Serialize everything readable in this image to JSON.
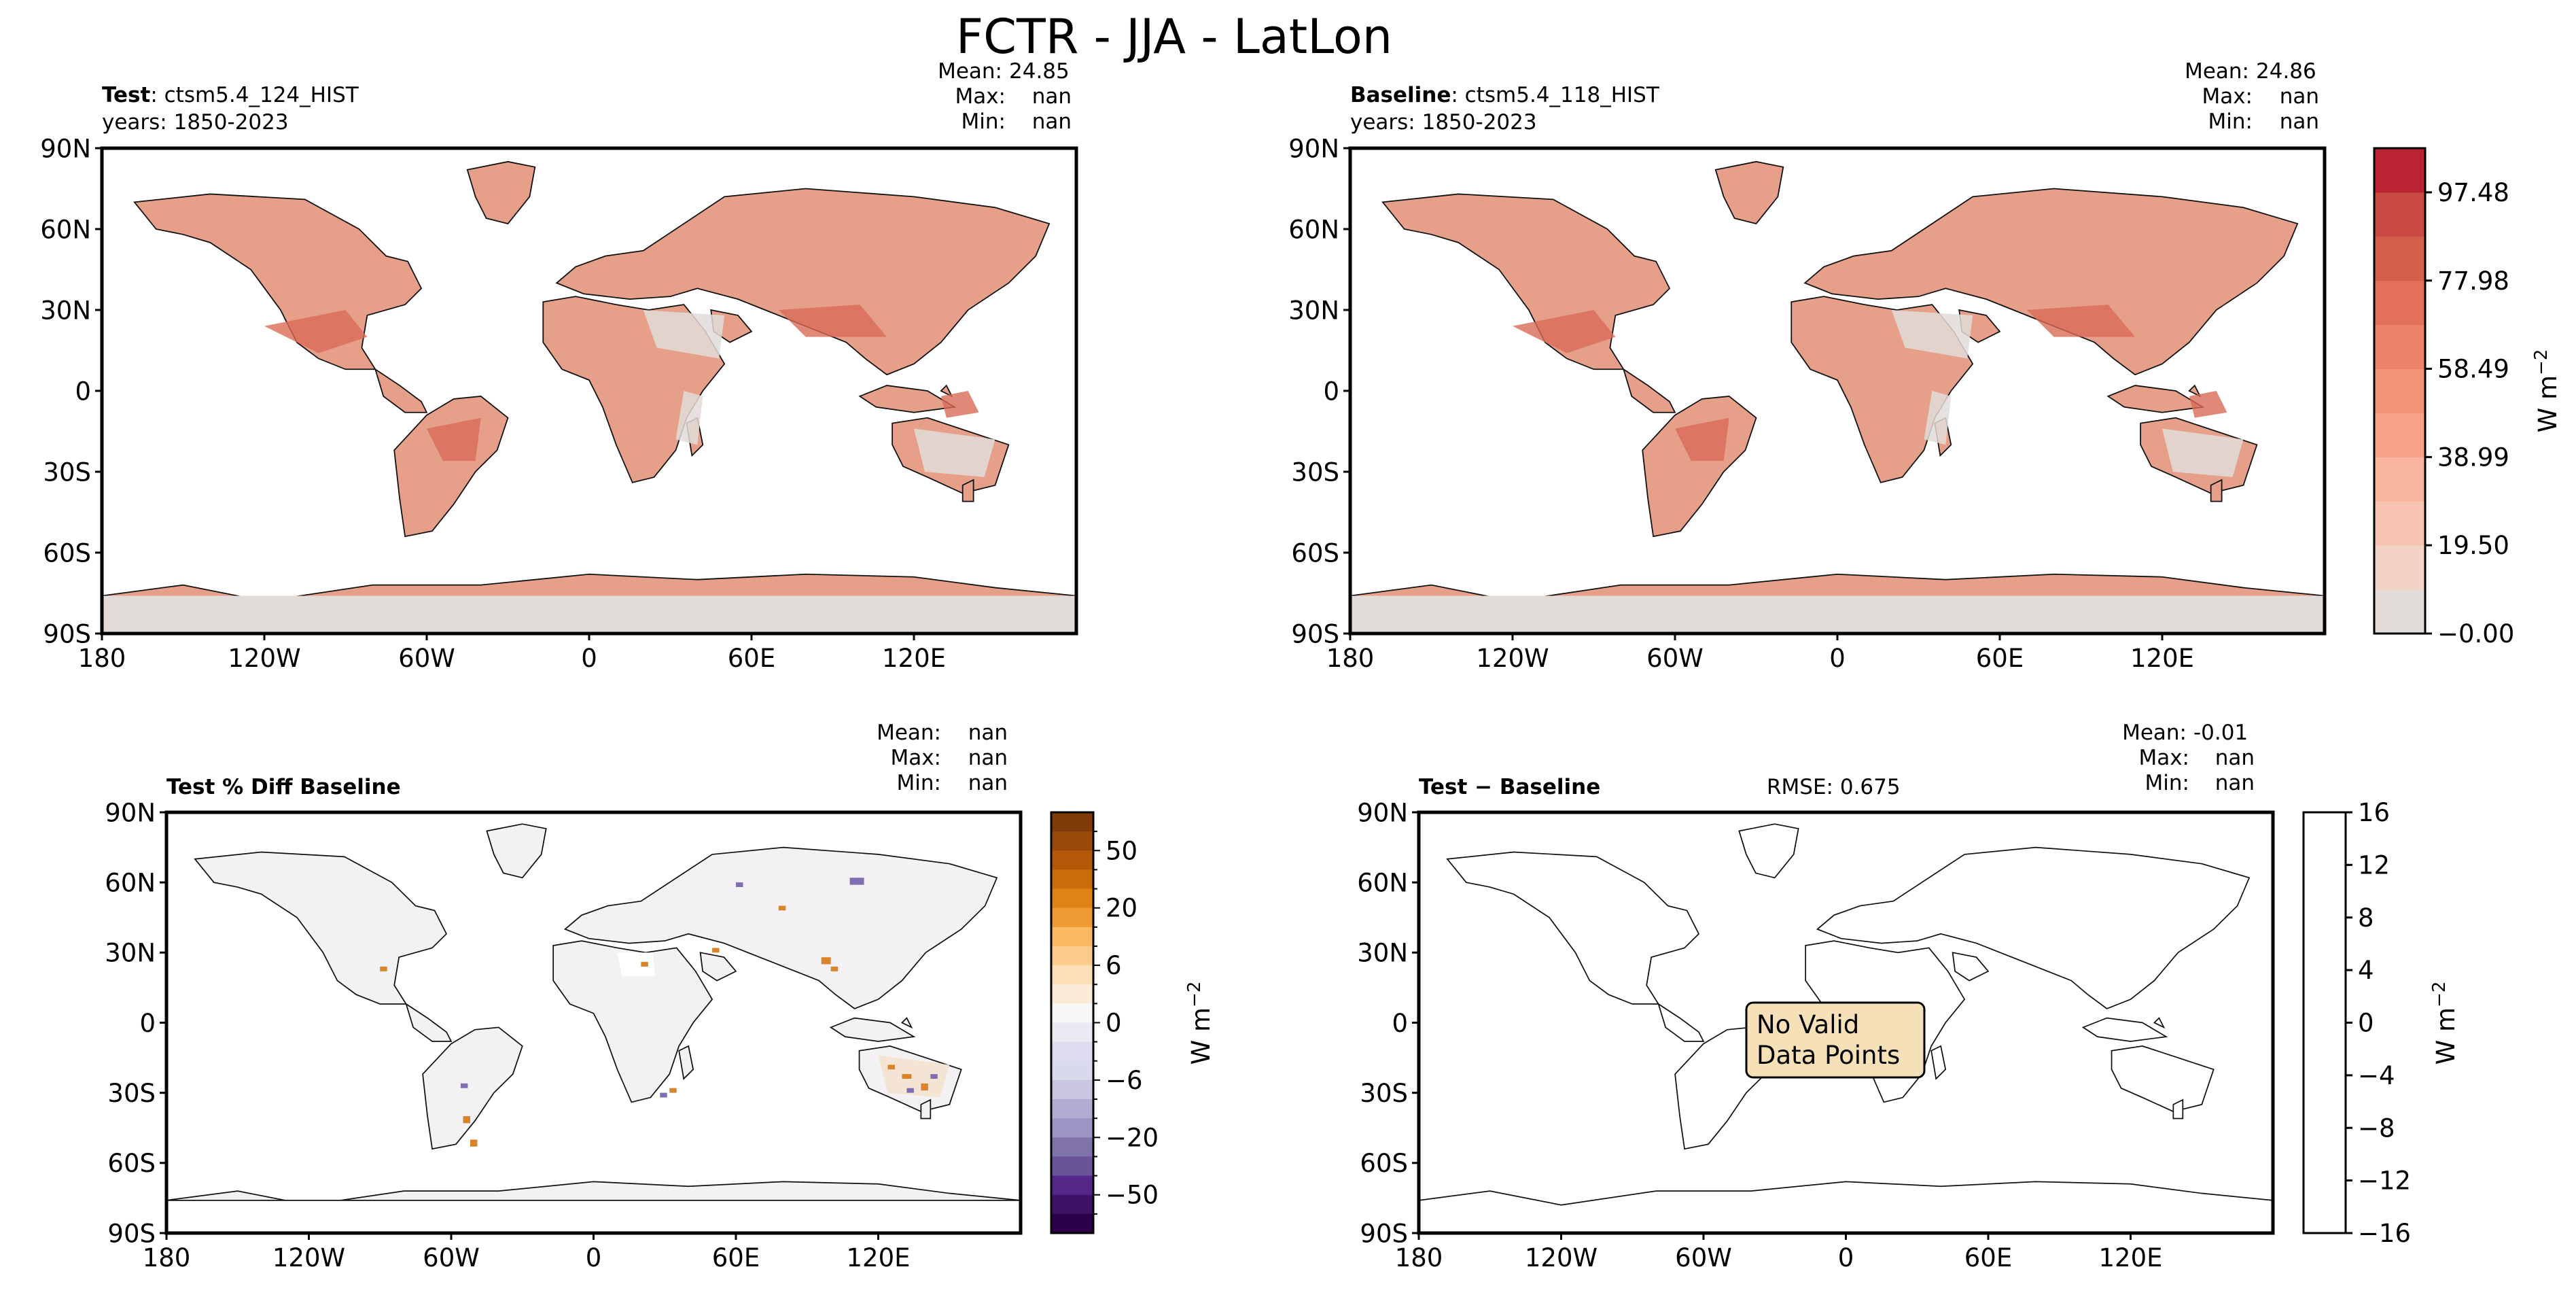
{
  "page": {
    "suptitle": "FCTR - JJA - LatLon"
  },
  "chart_data": [
    {
      "type": "heatmap",
      "panel": "test",
      "title_bold": "Test",
      "title_rest": ": ctsm5.4_124_HIST",
      "subtitle": "years: 1850-2023",
      "stats": {
        "mean_label": "Mean:",
        "mean": "24.85",
        "max_label": "Max:",
        "max": "nan",
        "min_label": "Min:",
        "min": "nan"
      },
      "x_ticks": [
        "180",
        "120W",
        "60W",
        "0",
        "60E",
        "120E"
      ],
      "y_ticks": [
        "90N",
        "60N",
        "30N",
        "0",
        "30S",
        "60S",
        "90S"
      ],
      "xlim": [
        -180,
        180
      ],
      "ylim": [
        -90,
        90
      ],
      "colorbar": "shared-fctr"
    },
    {
      "type": "heatmap",
      "panel": "baseline",
      "title_bold": "Baseline",
      "title_rest": ": ctsm5.4_118_HIST",
      "subtitle": "years: 1850-2023",
      "stats": {
        "mean_label": "Mean:",
        "mean": "24.86",
        "max_label": "Max:",
        "max": "nan",
        "min_label": "Min:",
        "min": "nan"
      },
      "x_ticks": [
        "180",
        "120W",
        "60W",
        "0",
        "60E",
        "120E"
      ],
      "y_ticks": [
        "90N",
        "60N",
        "30N",
        "0",
        "30S",
        "60S",
        "90S"
      ],
      "xlim": [
        -180,
        180
      ],
      "ylim": [
        -90,
        90
      ],
      "colorbar": {
        "ticks": [
          "97.48",
          "77.98",
          "58.49",
          "38.99",
          "19.50",
          "−0.00"
        ],
        "tick_values": [
          97.48,
          77.98,
          58.49,
          38.99,
          19.5,
          0
        ],
        "range": [
          0,
          107.23
        ],
        "levels": 11,
        "unit": "W m",
        "unit_sup": "−2",
        "colors": [
          "#e2dcd8",
          "#f3d3c6",
          "#f7c4b2",
          "#f8b49d",
          "#f6a38a",
          "#f29479",
          "#ec826a",
          "#e2705a",
          "#d55e4d",
          "#c84a40",
          "#bb2232"
        ]
      }
    },
    {
      "type": "heatmap",
      "panel": "pct-diff",
      "title_bold": "Test % Diff Baseline",
      "stats": {
        "mean_label": "Mean:",
        "mean": "nan",
        "max_label": "Max:",
        "max": "nan",
        "min_label": "Min:",
        "min": "nan"
      },
      "x_ticks": [
        "180",
        "120W",
        "60W",
        "0",
        "60E",
        "120E"
      ],
      "y_ticks": [
        "90N",
        "60N",
        "30N",
        "0",
        "30S",
        "60S",
        "90S"
      ],
      "xlim": [
        -180,
        180
      ],
      "ylim": [
        -90,
        90
      ],
      "colorbar": {
        "ticks": [
          "50",
          "20",
          "6",
          "0",
          "−6",
          "−20",
          "−50"
        ],
        "unit": "W m",
        "unit_sup": "−2",
        "colors_top_to_bottom": [
          "#7f3b08",
          "#98490b",
          "#b35806",
          "#cb6c0c",
          "#e08214",
          "#ee9b37",
          "#fdb863",
          "#fdcb8a",
          "#fee0b6",
          "#fbebd6",
          "#f7f7f7",
          "#ebe9f1",
          "#dedcee",
          "#d8daeb",
          "#c8c6e0",
          "#b2abd2",
          "#9e95c4",
          "#8073ac",
          "#6b539a",
          "#542788",
          "#3f1266",
          "#2d004b"
        ]
      }
    },
    {
      "type": "heatmap",
      "panel": "abs-diff",
      "title_bold": "Test",
      "title_rest": " − Baseline",
      "rmse": "RMSE: 0.675",
      "stats": {
        "mean_label": "Mean:",
        "mean": "-0.01",
        "max_label": "Max:",
        "max": "nan",
        "min_label": "Min:",
        "min": "nan"
      },
      "x_ticks": [
        "180",
        "120W",
        "60W",
        "0",
        "60E",
        "120E"
      ],
      "y_ticks": [
        "90N",
        "60N",
        "30N",
        "0",
        "30S",
        "60S",
        "90S"
      ],
      "xlim": [
        -180,
        180
      ],
      "ylim": [
        -90,
        90
      ],
      "annotation": [
        "No Valid",
        "Data Points"
      ],
      "annotation_color": "#f6e0b7",
      "colorbar": {
        "ticks": [
          "16",
          "12",
          "8",
          "4",
          "0",
          "−4",
          "−8",
          "−12",
          "−16"
        ],
        "tick_values": [
          16,
          12,
          8,
          4,
          0,
          -4,
          -8,
          -12,
          -16
        ],
        "range": [
          -16,
          16
        ],
        "unit": "W m",
        "unit_sup": "−2"
      }
    }
  ]
}
